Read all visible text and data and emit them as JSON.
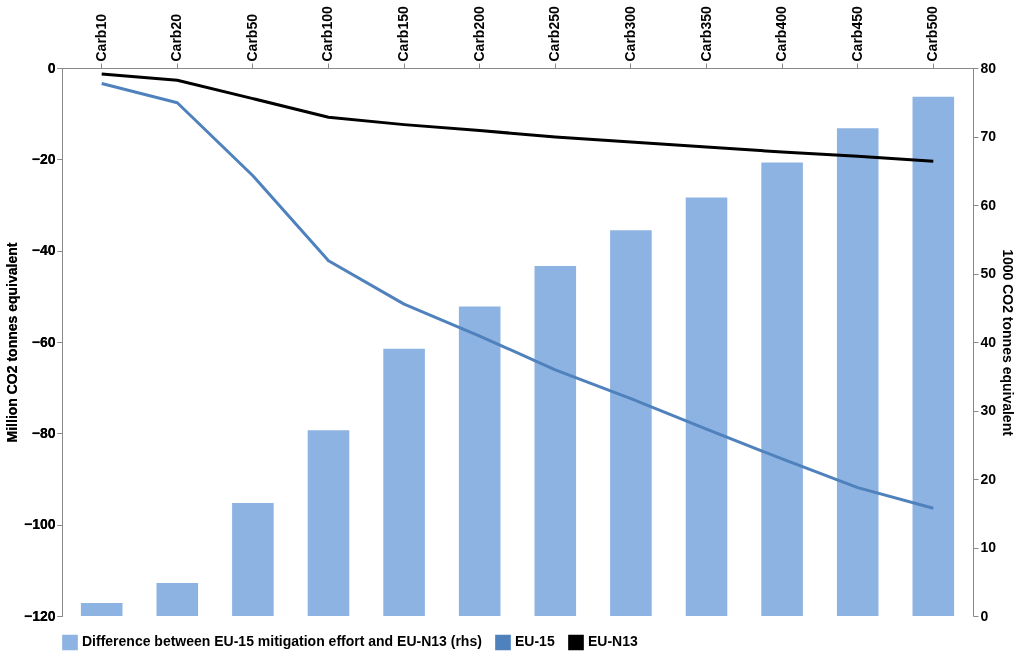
{
  "chart_data": {
    "type": "line",
    "ylabel": "Million CO2 tonnes equivalent",
    "y2label": "1000 CO2 tonnes equivalent",
    "categories": [
      "Carb10",
      "Carb20",
      "Carb50",
      "Carb100",
      "Carb150",
      "Carb200",
      "Carb250",
      "Carb300",
      "Carb350",
      "Carb400",
      "Carb450",
      "Carb500"
    ],
    "series": [
      {
        "name": "Difference between EU-15 mitigation effort and EU-N13 (rhs)",
        "type": "bar",
        "axis": "y2",
        "color": "#8db3e2",
        "values": [
          1.9,
          4.8,
          16.5,
          27.1,
          39.0,
          45.2,
          51.1,
          56.3,
          61.1,
          66.2,
          71.2,
          75.8
        ]
      },
      {
        "name": "EU-15",
        "color": "#4f81bd",
        "values": [
          -3.4,
          -7.6,
          -23.6,
          -42.2,
          -51.7,
          -58.7,
          -66.1,
          -72.4,
          -79.1,
          -85.6,
          -91.9,
          -96.4
        ]
      },
      {
        "name": "EU-N13",
        "color": "#000000",
        "values": [
          -1.3,
          -2.7,
          -6.7,
          -10.8,
          -12.4,
          -13.7,
          -15.1,
          -16.2,
          -17.3,
          -18.4,
          -19.3,
          -20.4
        ]
      }
    ],
    "ylim": [
      -120,
      0
    ],
    "yticks": [
      -120,
      -100,
      -80,
      -60,
      -40,
      -20,
      0
    ],
    "y2lim": [
      0,
      80
    ],
    "y2ticks": [
      0,
      10,
      20,
      30,
      40,
      50,
      60,
      70,
      80
    ],
    "legend": "bottom",
    "grid": false,
    "marker": "none",
    "line_style": "solid"
  }
}
